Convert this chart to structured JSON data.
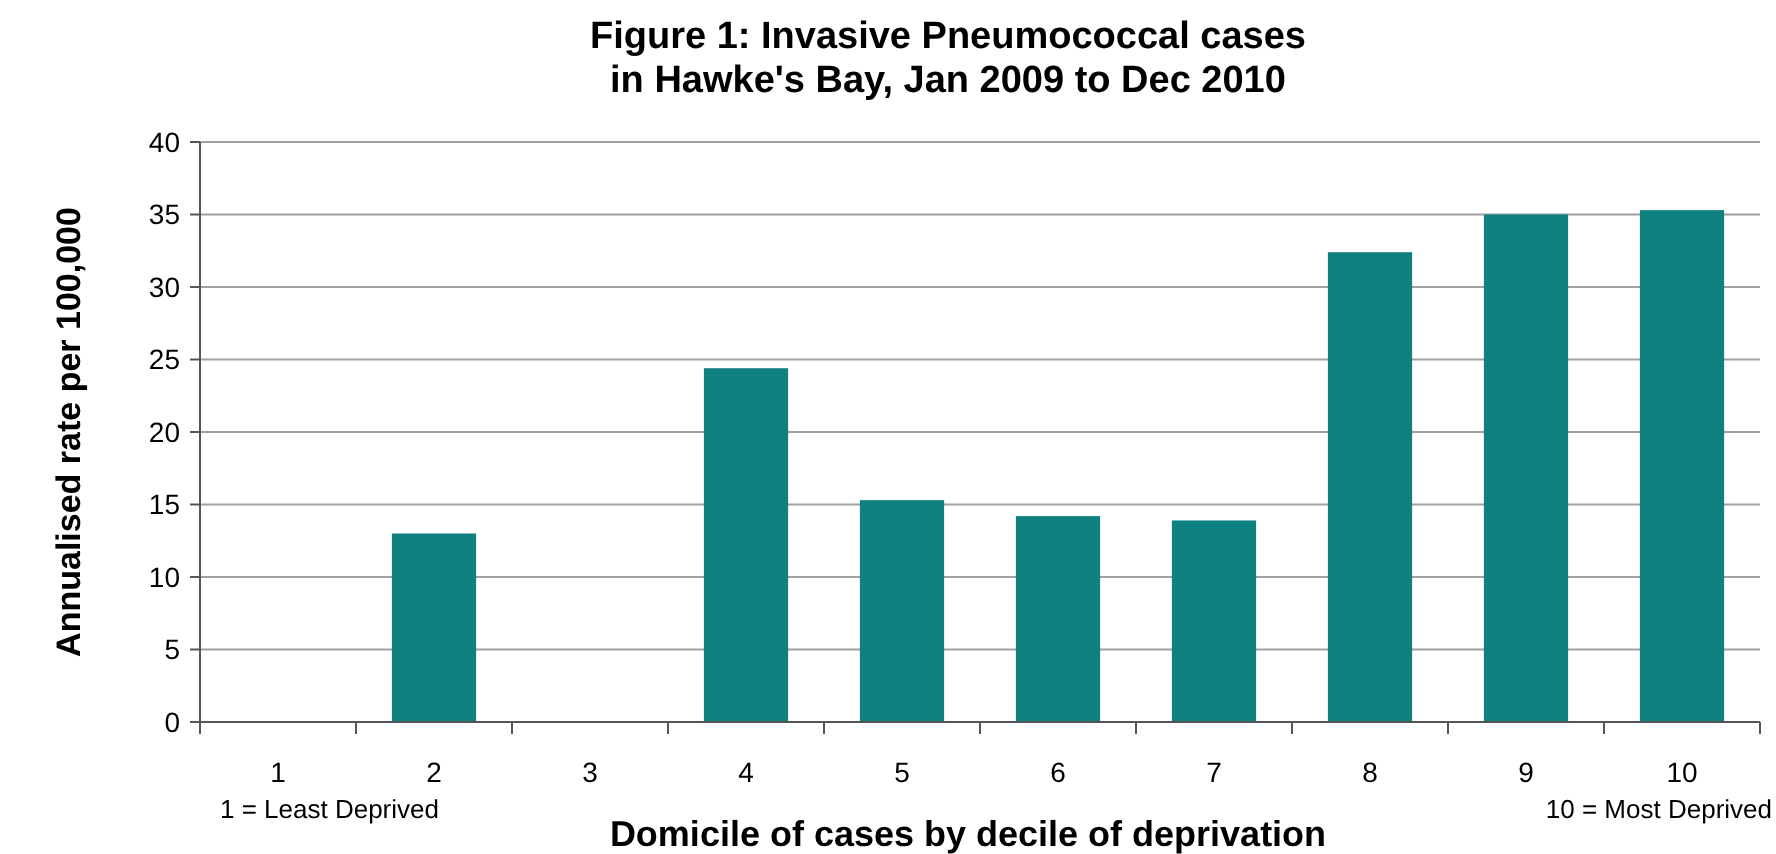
{
  "chart_data": {
    "type": "bar",
    "title": "Figure 1: Invasive Pneumococcal cases in Hawke's Bay, Jan 2009 to Dec 2010",
    "xlabel": "Domicile of cases by decile of deprivation",
    "ylabel": "Annualised rate per 100,000",
    "categories": [
      "1",
      "2",
      "3",
      "4",
      "5",
      "6",
      "7",
      "8",
      "9",
      "10"
    ],
    "values": [
      0,
      13,
      0,
      24.4,
      15.3,
      14.2,
      13.9,
      32.4,
      35,
      35.3
    ],
    "color": "#0f8080",
    "ylim": [
      0,
      40
    ],
    "yticks": [
      0,
      5,
      10,
      15,
      20,
      25,
      30,
      35,
      40
    ],
    "grid": "y",
    "annotations": [
      "1 = Least Deprived",
      "10 = Most Deprived"
    ]
  }
}
